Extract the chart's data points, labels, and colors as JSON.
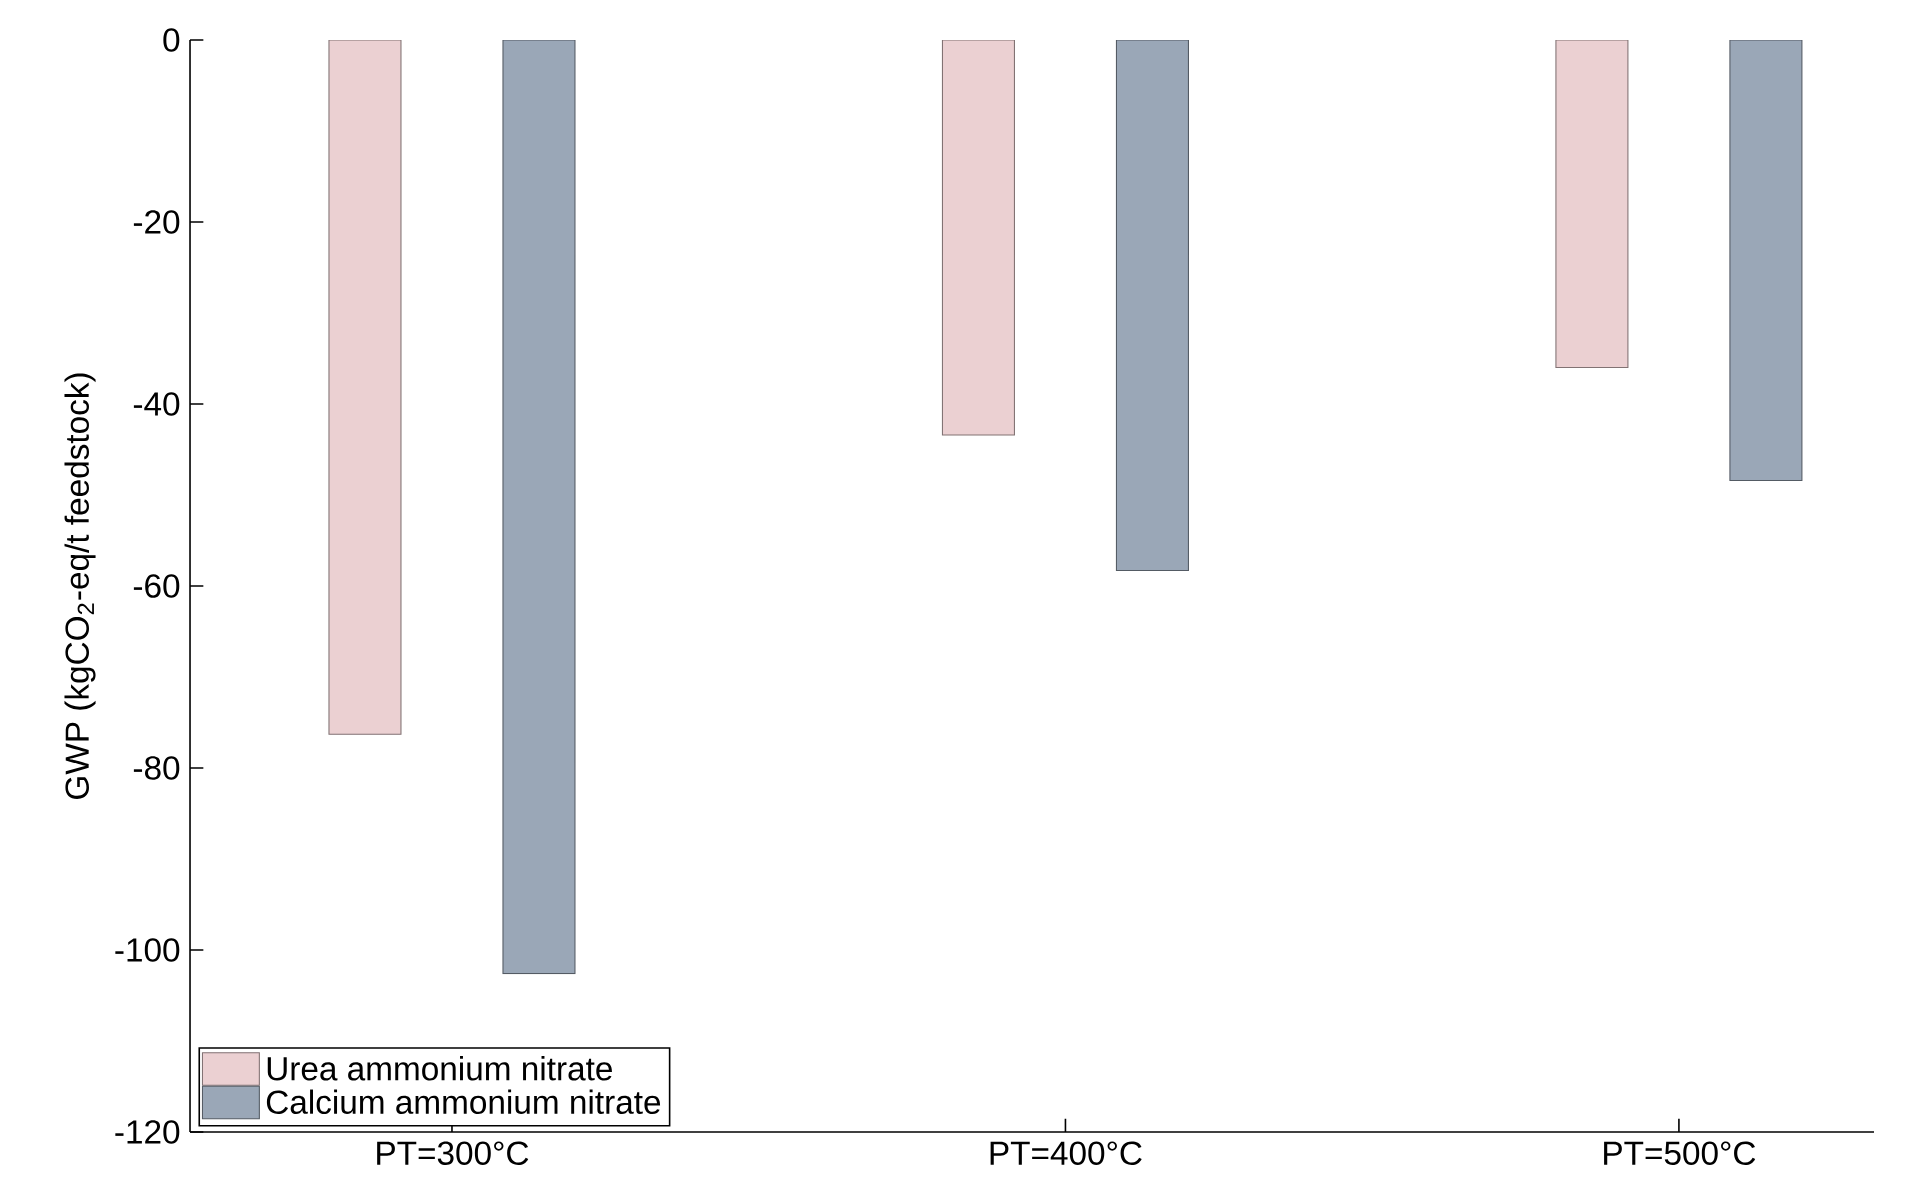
{
  "chart_data": {
    "type": "bar",
    "ylabel": "GWP (kgCO$_{2}$-eq/t feedstock)",
    "categories": [
      "PT=300°C",
      "PT=400°C",
      "PT=500°C"
    ],
    "series": [
      {
        "name": "Urea ammonium nitrate",
        "color": "#ebd0d2",
        "values": [
          -76.3,
          -43.4,
          -36.0
        ]
      },
      {
        "name": "Calcium ammonium nitrate",
        "color": "#9aa7b7",
        "values": [
          -102.6,
          -58.3,
          -48.4
        ]
      }
    ],
    "ylim": [
      -120,
      0
    ],
    "yticks": [
      -120,
      -100,
      -80,
      -60,
      -40,
      -20,
      0
    ],
    "grid": false,
    "legend": "bottom left"
  }
}
